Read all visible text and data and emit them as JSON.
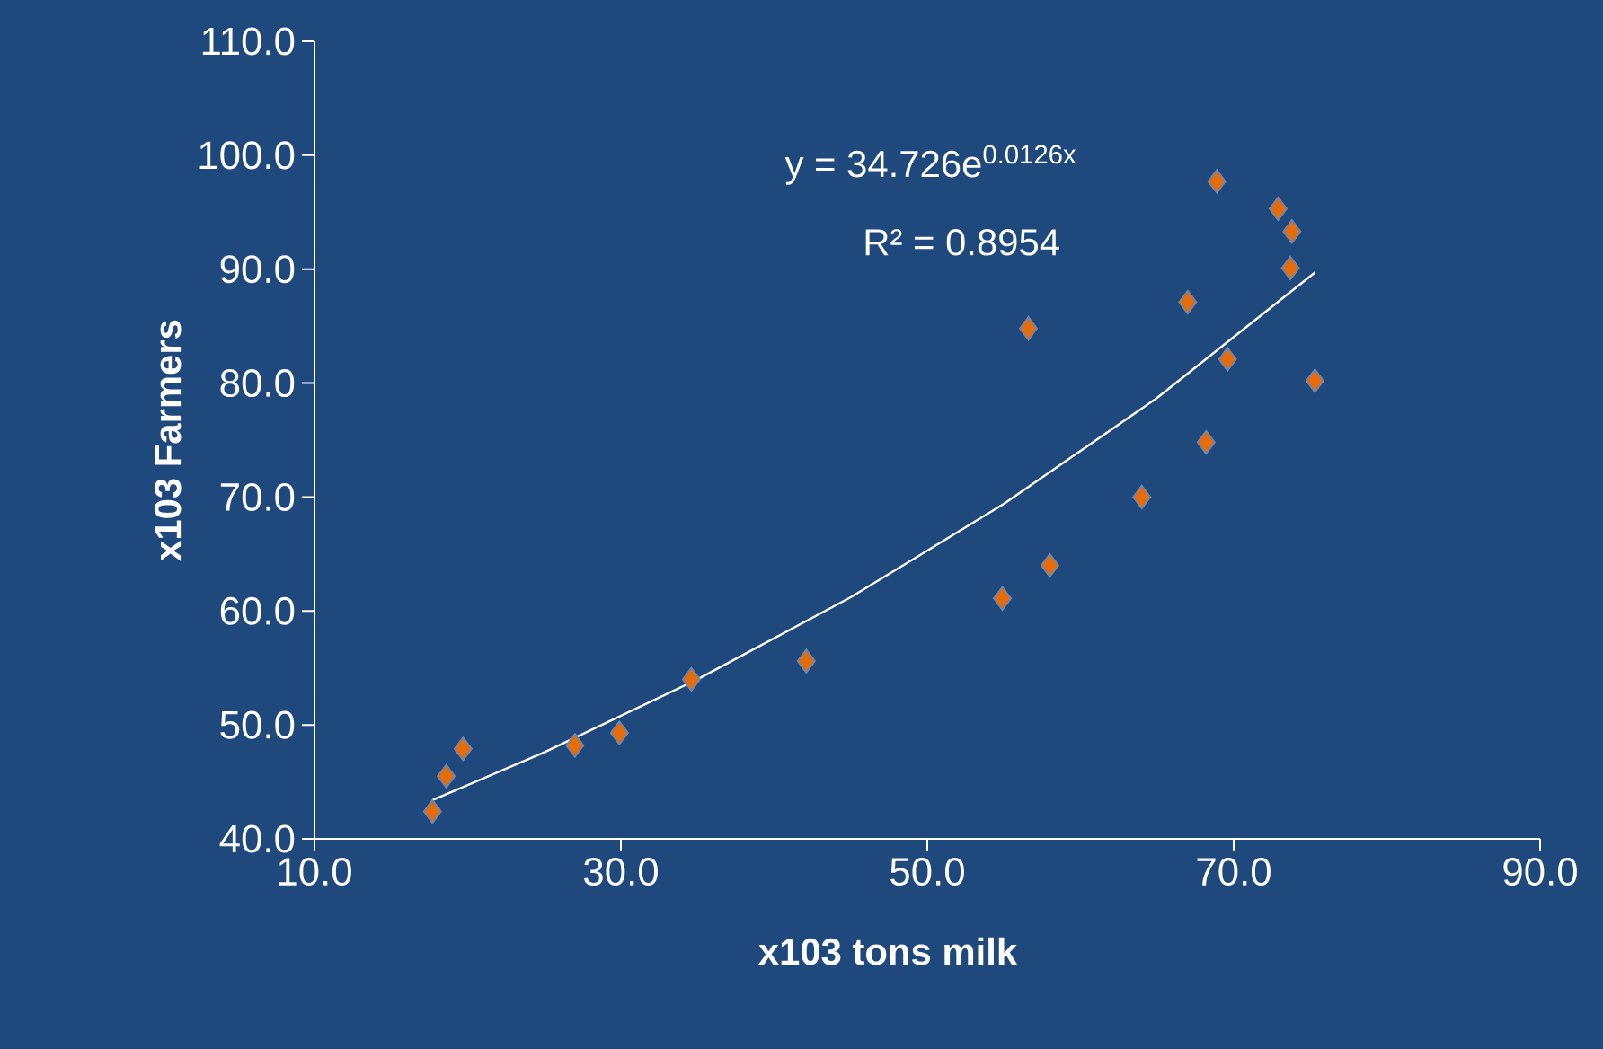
{
  "chart_data": {
    "type": "scatter",
    "xlabel": "x103 tons milk",
    "ylabel": "x103 Farmers",
    "annotations": [
      "y = 34.726e$^{0.0126x}$",
      "R² = 0.8954"
    ],
    "xlim": [
      10,
      90
    ],
    "ylim": [
      40,
      110
    ],
    "xticks": [
      {
        "value": 10,
        "label": "10.0"
      },
      {
        "value": 30,
        "label": "30.0"
      },
      {
        "value": 50,
        "label": "50.0"
      },
      {
        "value": 70,
        "label": "70.0"
      },
      {
        "value": 90,
        "label": "90.0"
      }
    ],
    "yticks": [
      {
        "value": 40,
        "label": "40.0"
      },
      {
        "value": 50,
        "label": "50.0"
      },
      {
        "value": 60,
        "label": "60.0"
      },
      {
        "value": 70,
        "label": "70.0"
      },
      {
        "value": 80,
        "label": "80.0"
      },
      {
        "value": 90,
        "label": "90.0"
      },
      {
        "value": 100,
        "label": "100.0"
      },
      {
        "value": 110,
        "label": "110.0"
      }
    ],
    "series": [
      {
        "color": "#e46c0a",
        "marker": "diamond",
        "x": [
          17.7,
          18.6,
          19.7,
          27.0,
          29.9,
          34.6,
          42.1,
          54.9,
          58.0,
          56.6,
          64.0,
          67.0,
          68.2,
          68.9,
          69.6,
          72.9,
          73.8,
          73.7,
          75.3
        ],
        "values": [
          42.4,
          45.5,
          47.9,
          48.2,
          49.3,
          54.0,
          55.6,
          61.1,
          64.0,
          84.8,
          70.0,
          87.1,
          74.8,
          97.7,
          82.1,
          95.3,
          93.3,
          90.1,
          80.2
        ]
      },
      {
        "type": "line",
        "color": "#ffffff",
        "marker": "none",
        "x": [
          17.7,
          25,
          35,
          45,
          55,
          65,
          75.3
        ],
        "values": [
          43.4,
          47.6,
          54.0,
          61.2,
          69.4,
          78.7,
          89.7
        ]
      }
    ]
  }
}
